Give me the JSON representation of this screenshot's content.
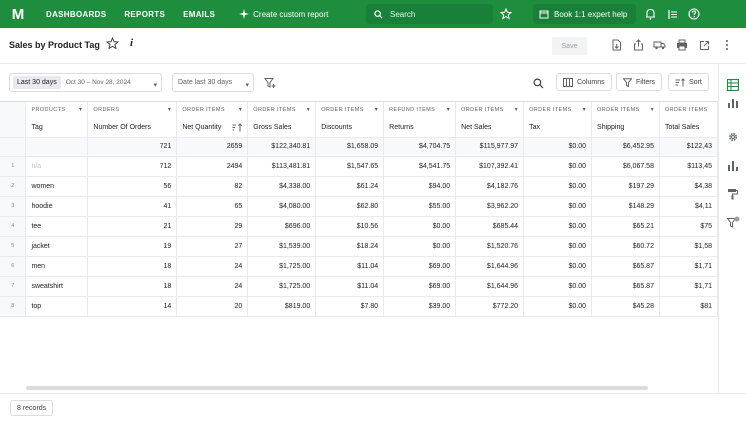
{
  "nav": {
    "logo": "M",
    "links": [
      "DASHBOARDS",
      "REPORTS",
      "EMAILS"
    ],
    "custom_report": "Create custom report",
    "search_placeholder": "Search",
    "expert_label": "Book 1:1 expert help"
  },
  "title": {
    "text": "Sales by Product Tag",
    "info": "i",
    "save_label": "Save"
  },
  "filters": {
    "range_chip": "Last 30 days",
    "range_dates": "Oct 30 – Nov 28, 2024",
    "date_field": "Date last 30 days",
    "columns_label": "Columns",
    "filters_label": "Filters",
    "sort_label": "Sort"
  },
  "table": {
    "groups": [
      "PRODUCTS",
      "ORDERS",
      "ORDER ITEMS",
      "ORDER ITEMS",
      "ORDER ITEMS",
      "REFUND ITEMS",
      "ORDER ITEMS",
      "ORDER ITEMS",
      "ORDER ITEMS",
      "ORDER ITEMS"
    ],
    "columns": [
      "Tag",
      "Number Of Orders",
      "Net Quantity",
      "Gross Sales",
      "Discounts",
      "Returns",
      "Net Sales",
      "Tax",
      "Shipping",
      "Total Sales"
    ],
    "totals": [
      "",
      "721",
      "2659",
      "$122,340.81",
      "$1,658.09",
      "$4,704.75",
      "$115,977.97",
      "$0.00",
      "$6,452.95",
      "$122,43"
    ],
    "rows": [
      {
        "num": "1",
        "cells": [
          "n/a",
          "712",
          "2494",
          "$113,481.81",
          "$1,547.65",
          "$4,541.75",
          "$107,392.41",
          "$0.00",
          "$6,067.58",
          "$113,45"
        ]
      },
      {
        "num": "2",
        "cells": [
          "women",
          "56",
          "82",
          "$4,338.00",
          "$61.24",
          "$94.00",
          "$4,182.76",
          "$0.00",
          "$197.29",
          "$4,38"
        ]
      },
      {
        "num": "3",
        "cells": [
          "hoodie",
          "41",
          "65",
          "$4,080.00",
          "$62.80",
          "$55.00",
          "$3,962.20",
          "$0.00",
          "$148.29",
          "$4,11"
        ]
      },
      {
        "num": "4",
        "cells": [
          "tee",
          "21",
          "29",
          "$696.00",
          "$10.56",
          "$0.00",
          "$685.44",
          "$0.00",
          "$65.21",
          "$75"
        ]
      },
      {
        "num": "5",
        "cells": [
          "jacket",
          "19",
          "27",
          "$1,539.00",
          "$18.24",
          "$0.00",
          "$1,520.76",
          "$0.00",
          "$60.72",
          "$1,58"
        ]
      },
      {
        "num": "6",
        "cells": [
          "men",
          "18",
          "24",
          "$1,725.00",
          "$11.04",
          "$69.00",
          "$1,644.96",
          "$0.00",
          "$65.87",
          "$1,71"
        ]
      },
      {
        "num": "7",
        "cells": [
          "sweatshirt",
          "18",
          "24",
          "$1,725.00",
          "$11.04",
          "$69.00",
          "$1,644.96",
          "$0.00",
          "$65.87",
          "$1,71"
        ]
      },
      {
        "num": "8",
        "cells": [
          "top",
          "14",
          "20",
          "$819.00",
          "$7.80",
          "$39.00",
          "$772.20",
          "$0.00",
          "$45.28",
          "$81"
        ]
      }
    ]
  },
  "footer": {
    "records": "8 records"
  },
  "colors": {
    "brand": "#1e8e3e",
    "brand_dark": "#188038"
  }
}
